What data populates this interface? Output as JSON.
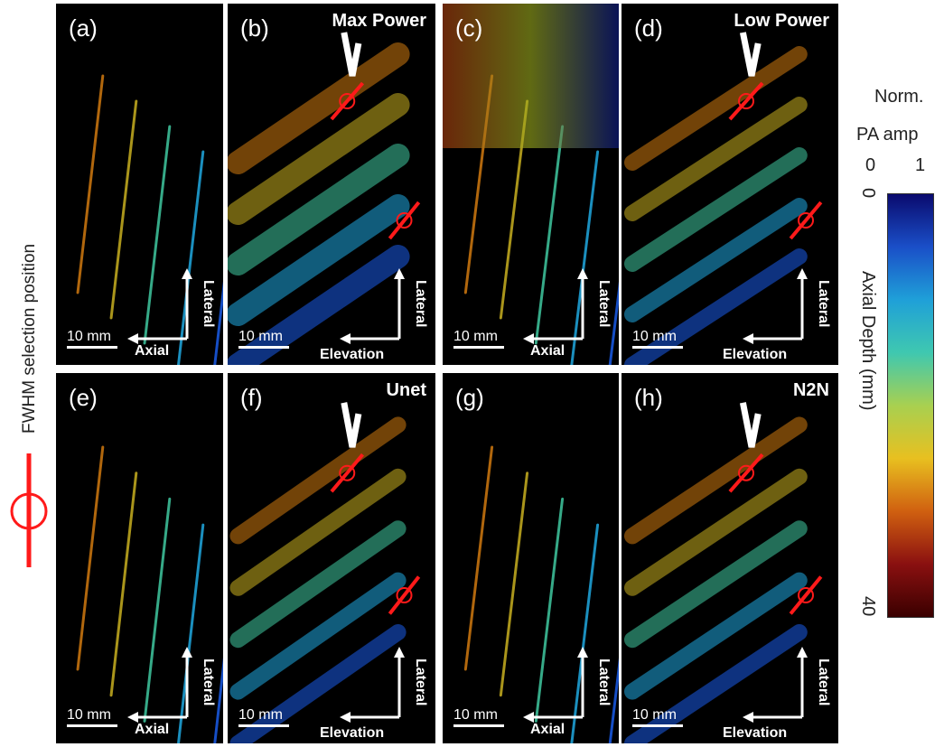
{
  "panels": [
    {
      "id": "a",
      "label": "(a)",
      "title": "",
      "scale": "10 mm",
      "h_axis": "Axial",
      "v_axis": "Lateral"
    },
    {
      "id": "b",
      "label": "(b)",
      "title": "Max Power",
      "scale": "10 mm",
      "h_axis": "Elevation",
      "v_axis": "Lateral"
    },
    {
      "id": "c",
      "label": "(c)",
      "title": "",
      "scale": "10 mm",
      "h_axis": "Axial",
      "v_axis": "Lateral"
    },
    {
      "id": "d",
      "label": "(d)",
      "title": "Low Power",
      "scale": "10 mm",
      "h_axis": "Elevation",
      "v_axis": "Lateral"
    },
    {
      "id": "e",
      "label": "(e)",
      "title": "",
      "scale": "10 mm",
      "h_axis": "Axial",
      "v_axis": "Lateral"
    },
    {
      "id": "f",
      "label": "(f)",
      "title": "Unet",
      "scale": "10 mm",
      "h_axis": "Elevation",
      "v_axis": "Lateral"
    },
    {
      "id": "g",
      "label": "(g)",
      "title": "",
      "scale": "10 mm",
      "h_axis": "Axial",
      "v_axis": "Lateral"
    },
    {
      "id": "h",
      "label": "(h)",
      "title": "N2N",
      "scale": "10 mm",
      "h_axis": "Elevation",
      "v_axis": "Lateral"
    }
  ],
  "left_legend": {
    "text": "FWHM selection position",
    "marker_color": "#ff1a1a"
  },
  "colorbar": {
    "title_line1": "Norm.",
    "title_line2": "PA amp",
    "amp_min": "0",
    "amp_max": "1",
    "depth_top": "0",
    "depth_bottom": "40",
    "axis_label": "Axial Depth (mm)",
    "colors": [
      "#0a0a6e",
      "#1a4fc8",
      "#1fa0d8",
      "#3fc8b0",
      "#a8d050",
      "#e8c020",
      "#d06010",
      "#8a1010",
      "#3a0000"
    ]
  }
}
